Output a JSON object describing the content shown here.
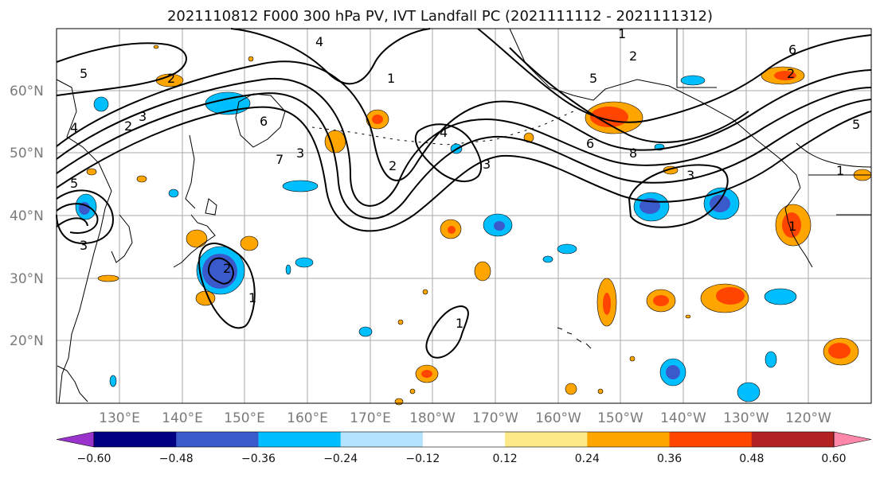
{
  "title": "2021110812 F000 300 hPa PV, IVT Landfall PC (2021111112 - 2021111312)",
  "map": {
    "lat_labels": [
      "20°N",
      "30°N",
      "40°N",
      "50°N",
      "60°N"
    ],
    "lon_labels": [
      "130°E",
      "140°E",
      "150°E",
      "160°E",
      "170°E",
      "180°W",
      "170°W",
      "160°W",
      "150°W",
      "140°W",
      "130°W",
      "120°W"
    ],
    "grid": "on",
    "pv_contour_labels": [
      "1",
      "2",
      "3",
      "4",
      "5",
      "6",
      "7",
      "8"
    ]
  },
  "colorbar": {
    "ticks": [
      "−0.60",
      "−0.48",
      "−0.36",
      "−0.24",
      "−0.12",
      "0.12",
      "0.24",
      "0.36",
      "0.48",
      "0.60"
    ],
    "colors": [
      "#9933cc",
      "#000080",
      "#3a5acc",
      "#00bfff",
      "#b3e3ff",
      "#ffffff",
      "#ffea8a",
      "#ffa500",
      "#ff4500",
      "#b22222",
      "#ff88aa"
    ]
  }
}
